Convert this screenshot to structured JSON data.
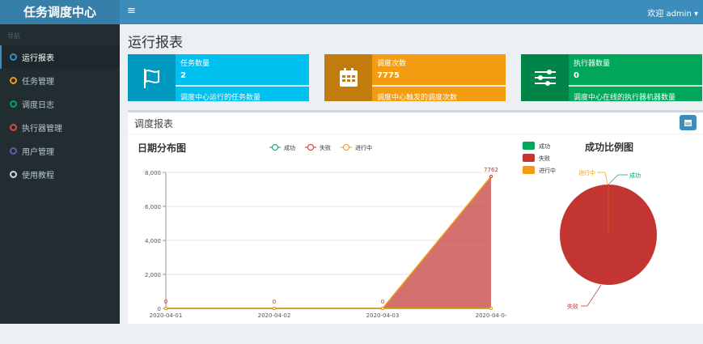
{
  "app": {
    "logo": "任务调度中心",
    "welcome": "欢迎 admin",
    "toggle_icon": "≡"
  },
  "sidebar": {
    "header": "导航",
    "items": [
      {
        "label": "运行报表",
        "color": "#3c8dbc",
        "active": true
      },
      {
        "label": "任务管理",
        "color": "#f39c12"
      },
      {
        "label": "调度日志",
        "color": "#00a65a"
      },
      {
        "label": "执行器管理",
        "color": "#dd4b39"
      },
      {
        "label": "用户管理",
        "color": "#605ca8"
      },
      {
        "label": "使用教程",
        "color": "#d2d6de"
      }
    ]
  },
  "page": {
    "title": "运行报表"
  },
  "infoboxes": [
    {
      "title": "任务数量",
      "value": "2",
      "desc": "调度中心运行的任务数量",
      "color": "#00c0ef",
      "icon": "flag-icon"
    },
    {
      "title": "调度次数",
      "value": "7775",
      "desc": "调度中心触发的调度次数",
      "color": "#f39c12",
      "icon": "calendar-icon"
    },
    {
      "title": "执行器数量",
      "value": "0",
      "desc": "调度中心在线的执行器机器数量",
      "color": "#00a65a",
      "icon": "sliders-icon"
    }
  ],
  "report": {
    "title": "调度报表"
  },
  "chart_data": [
    {
      "type": "area",
      "title": "日期分布图",
      "categories": [
        "2020-04-01",
        "2020-04-02",
        "2020-04-03",
        "2020-04-0-"
      ],
      "ylim": [
        0,
        8000
      ],
      "yticks": [
        "0",
        "2,000",
        "4,000",
        "6,000",
        "8,000"
      ],
      "legend_position": "top",
      "series": [
        {
          "name": "成功",
          "values": [
            0,
            0,
            0,
            0
          ],
          "color": "#00a65a"
        },
        {
          "name": "失败",
          "values": [
            0,
            0,
            0,
            7762
          ],
          "color": "#c23531"
        },
        {
          "name": "进行中",
          "values": [
            0,
            0,
            0,
            0
          ],
          "color": "#f39c12"
        }
      ],
      "data_labels": [
        "0",
        "0",
        "0",
        "7762"
      ]
    },
    {
      "type": "pie",
      "title": "成功比例图",
      "legend_position": "top-left",
      "slices": [
        {
          "name": "成功",
          "value": 0,
          "color": "#00a65a"
        },
        {
          "name": "失败",
          "value": 7762,
          "color": "#c23531"
        },
        {
          "name": "进行中",
          "value": 0,
          "color": "#f39c12"
        }
      ]
    }
  ]
}
